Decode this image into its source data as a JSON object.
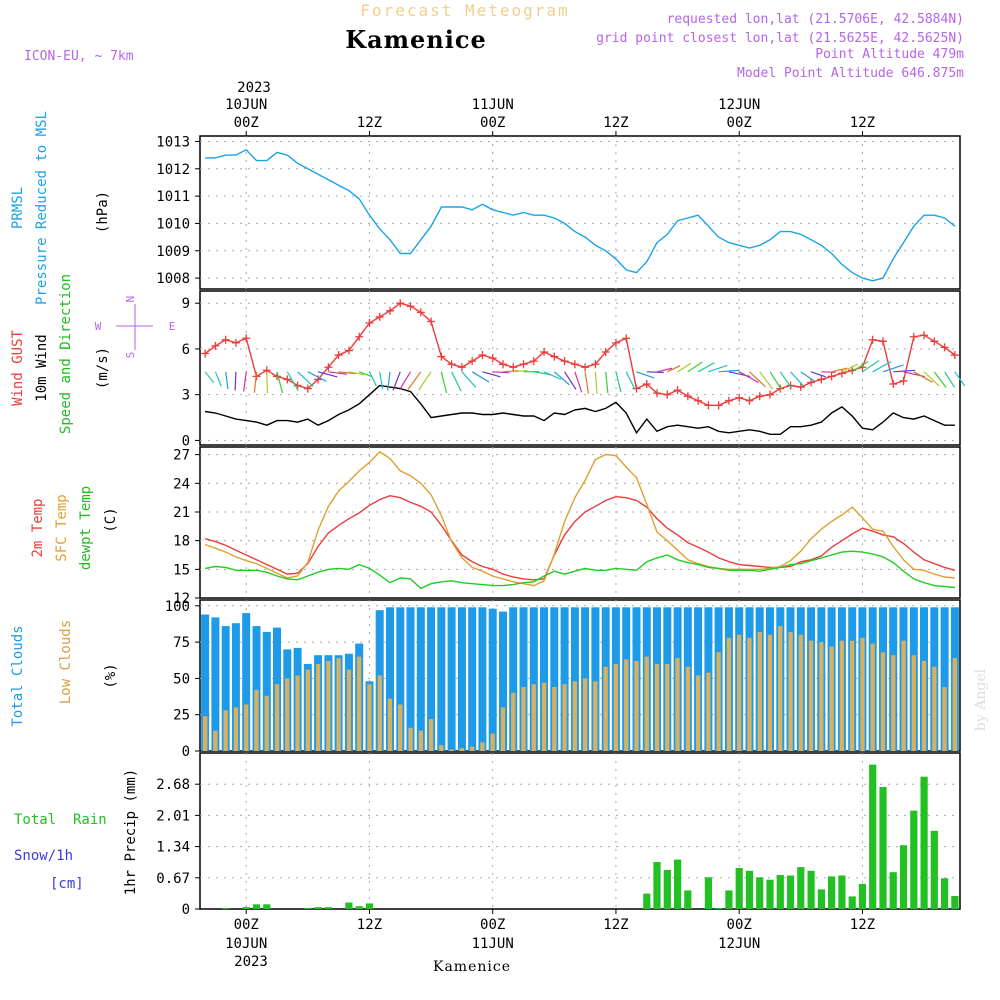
{
  "header": {
    "title": "Forecast Meteogram",
    "location": "Kamenice",
    "model": "ICON-EU, ~ 7km",
    "requested": "requested lon,lat (21.5706E, 42.5884N)",
    "grid_point": "grid point closest lon,lat (21.5625E, 42.5625N)",
    "point_altitude": "Point Altitude 479m",
    "model_altitude": "Model Point Altitude 646.875m",
    "year": "2023",
    "footer": "Kamenice",
    "credit": "by Angel"
  },
  "time_axis": {
    "top": [
      {
        "date": "10JUN",
        "hour": "00Z",
        "hour_idx": 4
      },
      {
        "date": "",
        "hour": "12Z",
        "hour_idx": 16
      },
      {
        "date": "11JUN",
        "hour": "00Z",
        "hour_idx": 28
      },
      {
        "date": "",
        "hour": "12Z",
        "hour_idx": 40
      },
      {
        "date": "12JUN",
        "hour": "00Z",
        "hour_idx": 52
      },
      {
        "date": "",
        "hour": "12Z",
        "hour_idx": 64
      }
    ],
    "bottom": [
      {
        "hour": "00Z",
        "date": "10JUN",
        "hour_idx": 4
      },
      {
        "hour": "12Z",
        "date": "",
        "hour_idx": 16
      },
      {
        "hour": "00Z",
        "date": "11JUN",
        "hour_idx": 28
      },
      {
        "hour": "12Z",
        "date": "",
        "hour_idx": 40
      },
      {
        "hour": "00Z",
        "date": "12JUN",
        "hour_idx": 52
      },
      {
        "hour": "12Z",
        "date": "",
        "hour_idx": 64
      }
    ]
  },
  "panel_labels": {
    "pressure": [
      "PRMSL",
      "Pressure Reduced to MSL",
      "(hPa)"
    ],
    "wind": [
      "Wind GUST",
      "10m Wind",
      "Speed and Direction",
      "(m/s)"
    ],
    "compass": [
      "N",
      "W",
      "E",
      "S"
    ],
    "temp": [
      "2m Temp",
      "SFC Temp",
      "dewpt Temp",
      "(C)"
    ],
    "clouds": [
      "Total Clouds",
      "Low Clouds",
      "(%)"
    ],
    "precip_left": [
      "Total  Rain",
      "Snow/1h",
      "[cm]"
    ],
    "precip_axis": "1hr Precip (mm)"
  },
  "colors": {
    "pressure": "#1aa3e8",
    "gust": "#ee3b3b",
    "wind": "#000000",
    "temp2m": "#ee3b3b",
    "sfc": "#e0a030",
    "dewpt": "#22cc22",
    "total_clouds": "#1e9be8",
    "low_clouds": "#d8b060",
    "precip": "#22c022",
    "snow": "#3a3ae0"
  },
  "chart_data": [
    {
      "type": "line",
      "name": "pressure",
      "ylim": [
        1007.6,
        1013.2
      ],
      "yticks": [
        1008,
        1009,
        1010,
        1011,
        1012,
        1013
      ],
      "series": [
        {
          "name": "PRMSL",
          "values": [
            1012.4,
            1012.4,
            1012.5,
            1012.5,
            1012.7,
            1012.3,
            1012.3,
            1012.6,
            1012.5,
            1012.2,
            1012.0,
            1011.8,
            1011.6,
            1011.4,
            1011.2,
            1010.9,
            1010.3,
            1009.8,
            1009.4,
            1008.9,
            1008.9,
            1009.4,
            1009.9,
            1010.6,
            1010.6,
            1010.6,
            1010.5,
            1010.7,
            1010.5,
            1010.4,
            1010.3,
            1010.4,
            1010.3,
            1010.3,
            1010.2,
            1010.0,
            1009.7,
            1009.5,
            1009.2,
            1009.0,
            1008.7,
            1008.3,
            1008.2,
            1008.6,
            1009.3,
            1009.6,
            1010.1,
            1010.2,
            1010.3,
            1009.9,
            1009.5,
            1009.3,
            1009.2,
            1009.1,
            1009.2,
            1009.4,
            1009.7,
            1009.7,
            1009.6,
            1009.4,
            1009.2,
            1008.9,
            1008.5,
            1008.2,
            1008.0,
            1007.9,
            1008.0,
            1008.7,
            1009.3,
            1009.9,
            1010.3,
            1010.3,
            1010.2,
            1009.9
          ]
        }
      ]
    },
    {
      "type": "line",
      "name": "wind",
      "ylim": [
        -0.3,
        9.8
      ],
      "yticks": [
        0,
        3,
        6,
        9
      ],
      "series": [
        {
          "name": "Wind GUST",
          "values": [
            5.7,
            6.2,
            6.6,
            6.4,
            6.7,
            4.2,
            4.6,
            4.2,
            4.0,
            3.6,
            3.4,
            4.0,
            4.8,
            5.6,
            5.9,
            6.8,
            7.7,
            8.1,
            8.5,
            9.0,
            8.8,
            8.4,
            7.8,
            5.5,
            5.0,
            4.8,
            5.2,
            5.6,
            5.4,
            5.0,
            4.8,
            5.0,
            5.2,
            5.8,
            5.5,
            5.2,
            5.0,
            4.8,
            5.0,
            5.8,
            6.4,
            6.7,
            3.4,
            3.7,
            3.1,
            3.0,
            3.3,
            2.9,
            2.6,
            2.3,
            2.3,
            2.6,
            2.8,
            2.6,
            2.9,
            3.0,
            3.4,
            3.6,
            3.5,
            3.8,
            4.0,
            4.2,
            4.4,
            4.6,
            4.8,
            6.6,
            6.5,
            3.7,
            3.9,
            6.8,
            6.9,
            6.5,
            6.1,
            5.6
          ]
        },
        {
          "name": "10m Wind",
          "values": [
            1.9,
            1.8,
            1.6,
            1.4,
            1.3,
            1.2,
            1.0,
            1.3,
            1.3,
            1.2,
            1.4,
            1.0,
            1.3,
            1.7,
            2.0,
            2.4,
            3.0,
            3.6,
            3.5,
            3.4,
            3.2,
            2.4,
            1.5,
            1.6,
            1.7,
            1.8,
            1.8,
            1.7,
            1.7,
            1.8,
            1.7,
            1.6,
            1.6,
            1.3,
            1.8,
            1.7,
            2.0,
            2.1,
            1.9,
            2.1,
            2.5,
            1.8,
            0.5,
            1.4,
            0.6,
            0.9,
            1.0,
            0.9,
            0.8,
            0.9,
            0.6,
            0.5,
            0.6,
            0.7,
            0.6,
            0.4,
            0.4,
            0.9,
            0.9,
            1.0,
            1.2,
            1.8,
            2.2,
            1.6,
            0.8,
            0.7,
            1.2,
            1.8,
            1.5,
            1.4,
            1.6,
            1.3,
            1.0,
            1.0
          ]
        }
      ]
    },
    {
      "type": "line",
      "name": "temperature",
      "ylim": [
        12,
        27.8
      ],
      "yticks": [
        12,
        15,
        18,
        21,
        24,
        27
      ],
      "series": [
        {
          "name": "2m Temp",
          "values": [
            18.2,
            17.9,
            17.5,
            17.0,
            16.5,
            16.0,
            15.5,
            15.0,
            14.5,
            14.6,
            15.6,
            17.4,
            18.8,
            19.6,
            20.3,
            20.9,
            21.7,
            22.3,
            22.7,
            22.5,
            22.0,
            21.6,
            21.0,
            19.6,
            18.0,
            16.5,
            15.8,
            15.3,
            15.0,
            14.5,
            14.2,
            14.0,
            13.9,
            14.0,
            16.5,
            18.6,
            20.0,
            21.0,
            21.6,
            22.2,
            22.6,
            22.5,
            22.2,
            21.5,
            20.3,
            19.3,
            18.6,
            17.8,
            17.3,
            16.8,
            16.2,
            15.8,
            15.5,
            15.4,
            15.3,
            15.2,
            15.2,
            15.3,
            15.8,
            16.0,
            16.4,
            17.3,
            18.0,
            18.7,
            19.3,
            19.0,
            18.6,
            18.4,
            17.7,
            16.8,
            16.0,
            15.6,
            15.2,
            14.9
          ]
        },
        {
          "name": "SFC Temp",
          "values": [
            17.6,
            17.2,
            16.8,
            16.3,
            15.9,
            15.6,
            15.1,
            14.6,
            14.1,
            14.3,
            15.7,
            19.1,
            21.6,
            23.2,
            24.2,
            25.3,
            26.2,
            27.3,
            26.6,
            25.3,
            24.8,
            24.0,
            22.8,
            20.6,
            17.9,
            16.2,
            15.2,
            14.8,
            14.3,
            14.0,
            13.7,
            13.5,
            13.3,
            13.8,
            16.6,
            20.0,
            22.5,
            24.3,
            26.5,
            27.0,
            26.9,
            25.7,
            24.6,
            21.8,
            18.9,
            18.0,
            17.0,
            16.0,
            15.6,
            15.3,
            15.1,
            15.0,
            15.0,
            15.0,
            15.0,
            15.1,
            15.3,
            15.9,
            16.9,
            18.2,
            19.2,
            20.0,
            20.7,
            21.5,
            20.4,
            19.2,
            19.0,
            17.4,
            16.0,
            15.0,
            14.9,
            14.5,
            14.2,
            14.1
          ]
        },
        {
          "name": "dewpt Temp",
          "values": [
            15.1,
            15.3,
            15.2,
            14.9,
            14.9,
            14.9,
            14.7,
            14.3,
            14.0,
            13.9,
            14.3,
            14.7,
            15.0,
            15.1,
            15.0,
            15.5,
            15.1,
            14.4,
            13.6,
            14.1,
            14.0,
            13.0,
            13.5,
            13.7,
            13.8,
            13.6,
            13.5,
            13.4,
            13.3,
            13.3,
            13.4,
            13.6,
            13.7,
            14.3,
            14.8,
            14.5,
            14.8,
            15.1,
            14.9,
            14.9,
            15.1,
            15.0,
            14.9,
            15.8,
            16.2,
            16.5,
            16.0,
            15.7,
            15.5,
            15.2,
            15.1,
            14.9,
            14.9,
            14.9,
            14.8,
            15.0,
            15.2,
            15.5,
            15.6,
            15.9,
            16.2,
            16.5,
            16.8,
            16.9,
            16.8,
            16.6,
            16.3,
            15.7,
            14.8,
            14.0,
            13.6,
            13.3,
            13.2,
            13.1
          ]
        }
      ]
    },
    {
      "type": "bar",
      "name": "clouds",
      "ylim": [
        0,
        104
      ],
      "yticks": [
        0,
        25,
        50,
        75,
        100
      ],
      "series": [
        {
          "name": "Total Clouds",
          "values": [
            94,
            92,
            86,
            88,
            95,
            86,
            82,
            85,
            70,
            71,
            60,
            66,
            66,
            66,
            67,
            74,
            48,
            97,
            99,
            99,
            99,
            99,
            99,
            99,
            99,
            99,
            99,
            99,
            98,
            96,
            99,
            99,
            99,
            99,
            99,
            99,
            99,
            99,
            99,
            99,
            99,
            99,
            99,
            99,
            99,
            99,
            99,
            99,
            99,
            99,
            99,
            99,
            99,
            99,
            99,
            99,
            99,
            99,
            99,
            99,
            99,
            99,
            99,
            99,
            99,
            99,
            99,
            99,
            99,
            99,
            99,
            99,
            99,
            99
          ]
        },
        {
          "name": "Low Clouds",
          "values": [
            24,
            14,
            28,
            30,
            32,
            42,
            38,
            46,
            50,
            52,
            56,
            60,
            62,
            64,
            56,
            65,
            46,
            52,
            36,
            32,
            16,
            14,
            22,
            4,
            1,
            2,
            3,
            6,
            12,
            30,
            40,
            44,
            46,
            47,
            44,
            46,
            48,
            50,
            48,
            58,
            60,
            63,
            62,
            65,
            60,
            60,
            64,
            58,
            52,
            54,
            68,
            78,
            80,
            78,
            82,
            80,
            86,
            82,
            80,
            76,
            75,
            72,
            76,
            76,
            78,
            74,
            68,
            66,
            76,
            66,
            62,
            58,
            44,
            64
          ]
        }
      ]
    },
    {
      "type": "bar",
      "name": "precipitation",
      "ylim": [
        0,
        3.35
      ],
      "yticks": [
        "0",
        "0.67",
        "1.34",
        "2.01",
        "2.68"
      ],
      "series": [
        {
          "name": "Total Rain",
          "values": [
            0,
            0,
            0.02,
            0,
            0.04,
            0.1,
            0.1,
            0,
            0,
            0,
            0.02,
            0.04,
            0.04,
            0,
            0.14,
            0.06,
            0.12,
            0,
            0,
            0,
            0,
            0,
            0,
            0,
            0,
            0,
            0,
            0,
            0,
            0,
            0,
            0,
            0,
            0,
            0,
            0,
            0,
            0,
            0,
            0,
            0,
            0,
            0,
            0.33,
            1.01,
            0.84,
            1.06,
            0.4,
            0,
            0.68,
            0.02,
            0.4,
            0.88,
            0.82,
            0.68,
            0.63,
            0.73,
            0.72,
            0.9,
            0.82,
            0.42,
            0.7,
            0.72,
            0.27,
            0.54,
            3.1,
            2.62,
            0.79,
            1.37,
            2.11,
            2.84,
            1.68,
            0.66,
            0.28
          ]
        }
      ]
    }
  ]
}
